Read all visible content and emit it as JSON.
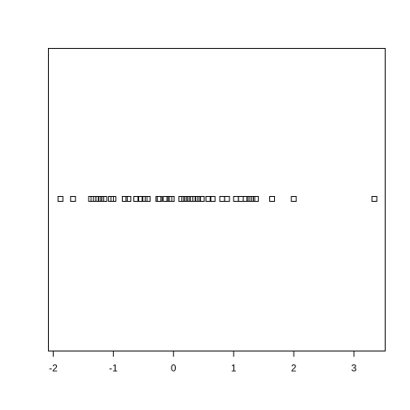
{
  "chart_data": {
    "type": "scatter",
    "title": "",
    "xlabel": "",
    "ylabel": "",
    "xlim": [
      -2.08,
      3.52
    ],
    "grid": false,
    "legend": "none",
    "marker": "open-square",
    "x_ticks": [
      -2,
      -1,
      0,
      1,
      2,
      3
    ],
    "x_tick_labels": [
      "-2",
      "-1",
      "0",
      "1",
      "2",
      "3"
    ],
    "points": [
      -1.88,
      -1.67,
      -1.37,
      -1.33,
      -1.29,
      -1.25,
      -1.2,
      -1.15,
      -1.04,
      -1.0,
      -0.81,
      -0.75,
      -0.62,
      -0.55,
      -0.48,
      -0.43,
      -0.25,
      -0.23,
      -0.13,
      -0.07,
      -0.03,
      0.13,
      0.18,
      0.23,
      0.28,
      0.32,
      0.36,
      0.41,
      0.47,
      0.58,
      0.65,
      0.81,
      0.89,
      1.04,
      1.12,
      1.2,
      1.26,
      1.31,
      1.37,
      1.64,
      2.0,
      3.34
    ],
    "colors": {
      "marker_stroke": "#000000",
      "axis": "#000000",
      "background": "#ffffff"
    }
  }
}
